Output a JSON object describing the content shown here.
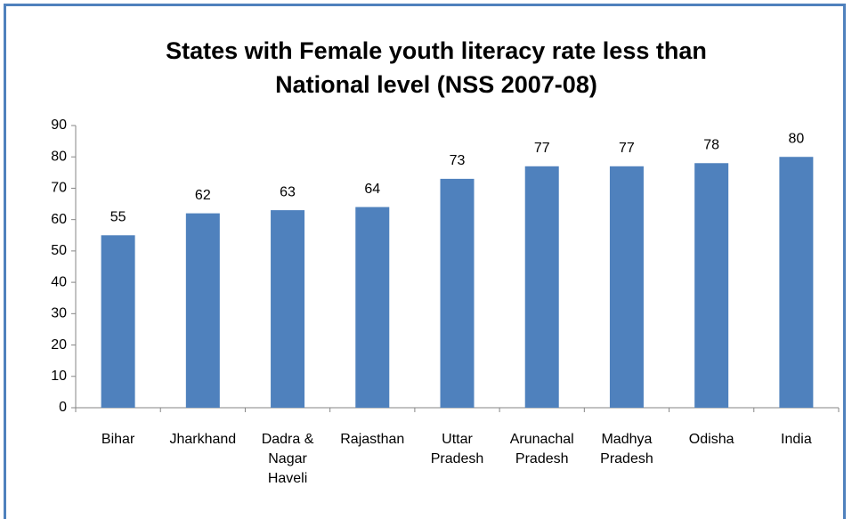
{
  "chart_data": {
    "type": "bar",
    "title": "States with Female youth literacy rate less than National level (NSS 2007-08)",
    "categories": [
      "Bihar",
      "Jharkhand",
      "Dadra & Nagar Haveli",
      "Rajasthan",
      "Uttar Pradesh",
      "Arunachal Pradesh",
      "Madhya Pradesh",
      "Odisha",
      "India"
    ],
    "values": [
      55,
      62,
      63,
      64,
      73,
      77,
      77,
      78,
      80
    ],
    "color": "#4f81bd",
    "ylim": [
      0,
      90
    ],
    "yticks": [
      0,
      10,
      20,
      30,
      40,
      50,
      60,
      70,
      80,
      90
    ],
    "grid": false
  }
}
